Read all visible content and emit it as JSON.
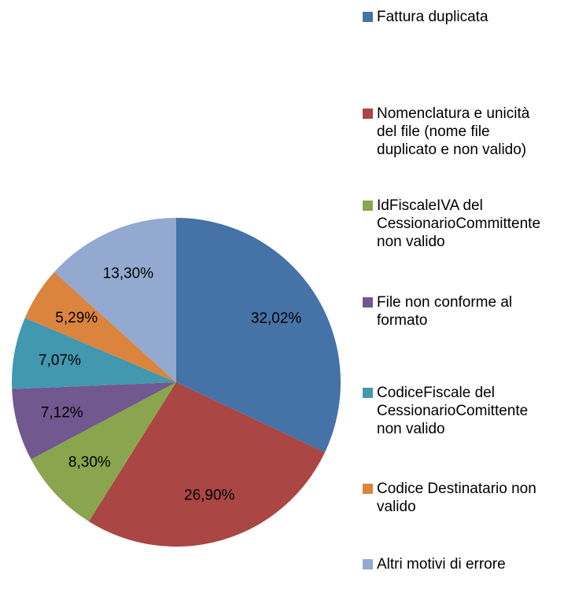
{
  "chart_data": {
    "type": "pie",
    "categories": [
      "Fattura duplicata",
      "Nomenclatura e unicità del file (nome file duplicato e non valido)",
      "IdFiscaleIVA del CessionarioCommittente non valido",
      "File non conforme al formato",
      "CodiceFiscale del CessionarioComittente non valido",
      "Codice Destinatario non valido",
      "Altri motivi di errore"
    ],
    "values": [
      32.02,
      26.9,
      8.3,
      7.12,
      7.07,
      5.29,
      13.3
    ],
    "value_labels": [
      "32,02%",
      "26,90%",
      "8,30%",
      "7,12%",
      "7,07%",
      "5,29%",
      "13,30%"
    ],
    "colors": [
      "#4572a7",
      "#aa4643",
      "#89a54e",
      "#71588f",
      "#4198af",
      "#db843d",
      "#93a9cf"
    ],
    "legend": "right"
  }
}
